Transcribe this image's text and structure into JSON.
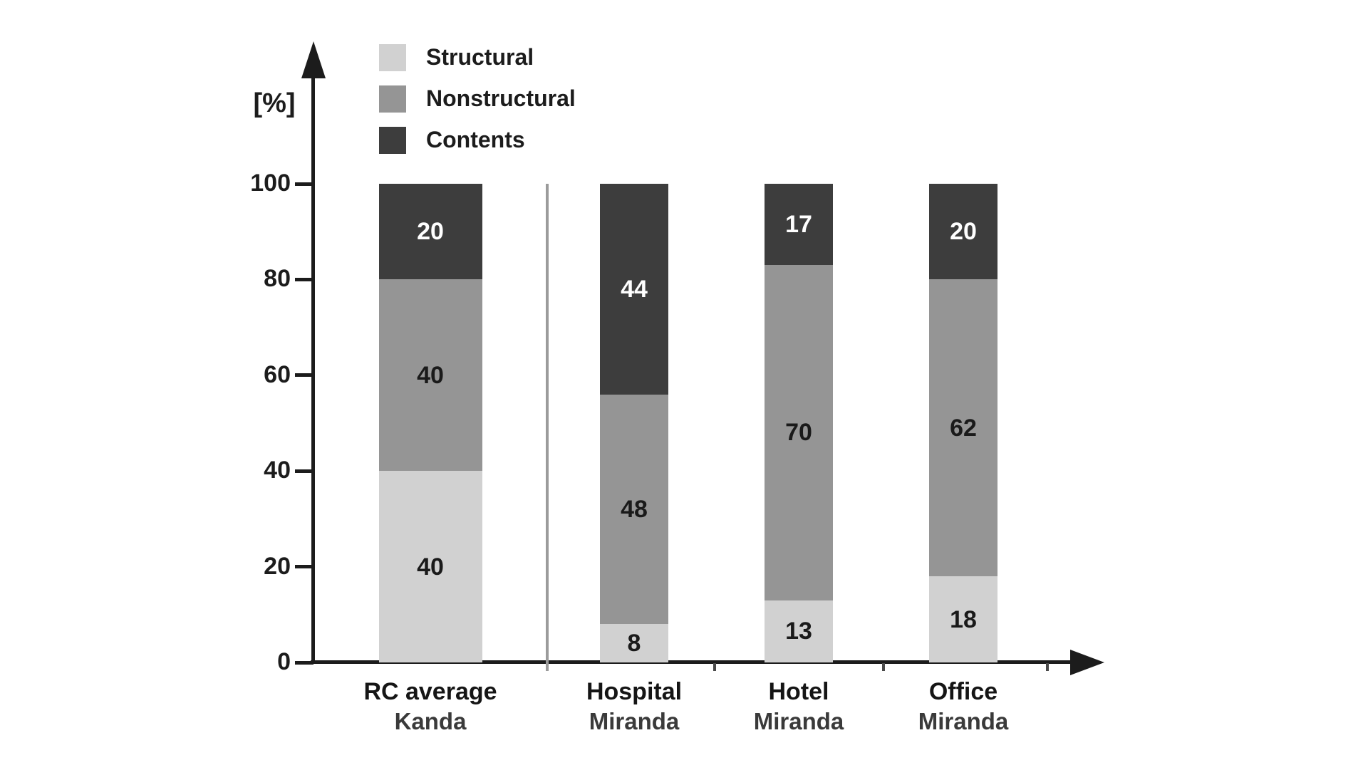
{
  "chart_data": {
    "type": "bar",
    "stacked": true,
    "title": "",
    "xlabel": "",
    "ylabel": "[%]",
    "ylim": [
      0,
      100
    ],
    "yticks": [
      0,
      20,
      40,
      60,
      80,
      100
    ],
    "grid": false,
    "legend_position": "top-left",
    "legend_entries": [
      "Structural",
      "Nonstructural",
      "Contents"
    ],
    "categories": [
      {
        "line1": "RC average",
        "line2": "Kanda"
      },
      {
        "line1": "Hospital",
        "line2": "Miranda"
      },
      {
        "line1": "Hotel",
        "line2": "Miranda"
      },
      {
        "line1": "Office",
        "line2": "Miranda"
      }
    ],
    "series": [
      {
        "name": "Structural",
        "color": "#d1d1d1",
        "label_color": "#1a1a1a",
        "values": [
          40,
          8,
          13,
          18
        ]
      },
      {
        "name": "Nonstructural",
        "color": "#959595",
        "label_color": "#1a1a1a",
        "values": [
          40,
          48,
          70,
          62
        ]
      },
      {
        "name": "Contents",
        "color": "#3d3d3d",
        "label_color": "#ffffff",
        "values": [
          20,
          44,
          17,
          20
        ]
      }
    ],
    "colors": {
      "axis": "#1c1c1c",
      "divider": "#9b9b9b",
      "background": "#ffffff"
    }
  }
}
